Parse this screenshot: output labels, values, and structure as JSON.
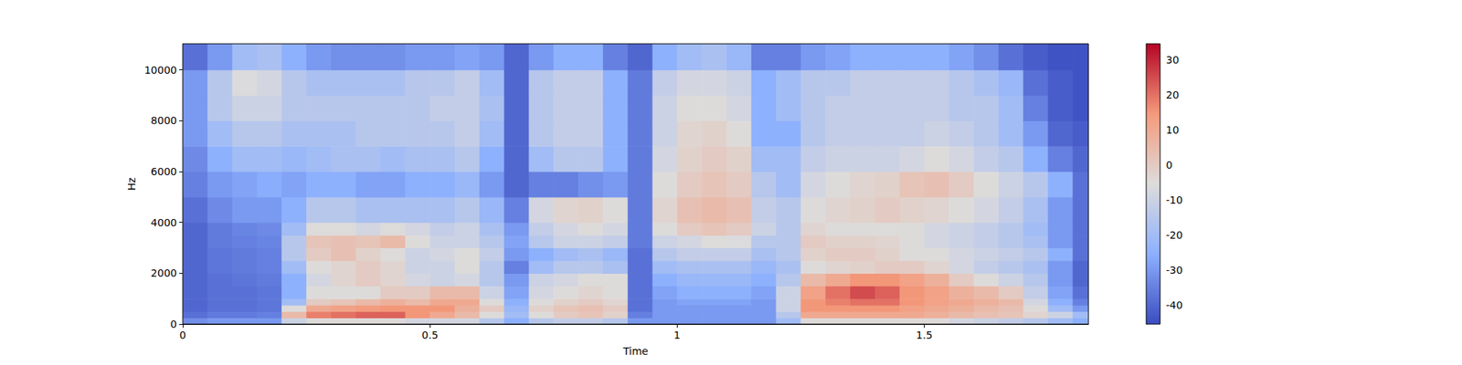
{
  "chart_data": {
    "type": "heatmap",
    "xlabel": "Time",
    "ylabel": "Hz",
    "xlim": [
      0,
      1.832
    ],
    "ylim": [
      0,
      11025
    ],
    "xticks": [
      0,
      0.5,
      1,
      1.5
    ],
    "yticks": [
      0,
      2000,
      4000,
      6000,
      8000,
      10000
    ],
    "colorbar": {
      "range": [
        -45.3,
        34.5
      ],
      "ticks": [
        -40,
        -30,
        -20,
        -10,
        0,
        10,
        20,
        30
      ]
    },
    "x_bins": [
      0,
      0.05,
      0.1,
      0.15,
      0.2,
      0.25,
      0.3,
      0.35,
      0.4,
      0.45,
      0.5,
      0.55,
      0.6,
      0.65,
      0.7,
      0.75,
      0.8,
      0.85,
      0.9,
      0.95,
      1.0,
      1.05,
      1.1,
      1.15,
      1.2,
      1.25,
      1.3,
      1.35,
      1.4,
      1.45,
      1.5,
      1.55,
      1.6,
      1.65,
      1.7,
      1.75,
      1.8,
      1.832
    ],
    "y_bins": [
      0,
      250,
      500,
      750,
      1000,
      1500,
      2000,
      2500,
      3000,
      3500,
      4000,
      5000,
      6000,
      7000,
      8000,
      9000,
      10000,
      11025
    ],
    "cells": [
      [
        -32,
        -38,
        -40,
        -40,
        -40,
        -40,
        -40,
        -40,
        -40,
        -40,
        -38,
        -35,
        -33,
        -30,
        -30,
        -30,
        -38
      ],
      [
        -30,
        -36,
        -38,
        -38,
        -38,
        -38,
        -37,
        -37,
        -36,
        -36,
        -33,
        -30,
        -25,
        -20,
        -15,
        -15,
        -30
      ],
      [
        -30,
        -36,
        -38,
        -38,
        -38,
        -37,
        -36,
        -36,
        -35,
        -34,
        -30,
        -28,
        -20,
        -15,
        -10,
        -6,
        -20
      ],
      [
        -30,
        -35,
        -37,
        -37,
        -37,
        -36,
        -35,
        -35,
        -34,
        -33,
        -30,
        -26,
        -20,
        -15,
        -10,
        -8,
        -18
      ],
      [
        -10,
        5,
        -5,
        -20,
        -25,
        -25,
        -20,
        -15,
        -15,
        -20,
        -25,
        -28,
        -22,
        -18,
        -15,
        -15,
        -25
      ],
      [
        -5,
        18,
        10,
        0,
        -5,
        -8,
        -5,
        0,
        2,
        -5,
        -15,
        -25,
        -20,
        -18,
        -15,
        -18,
        -30
      ],
      [
        -5,
        20,
        12,
        2,
        -5,
        -3,
        -3,
        3,
        3,
        -5,
        -15,
        -25,
        -18,
        -18,
        -15,
        -18,
        -32
      ],
      [
        -5,
        22,
        14,
        5,
        -5,
        0,
        0,
        -2,
        2,
        -8,
        -18,
        -28,
        -18,
        -15,
        -15,
        -18,
        -32
      ],
      [
        -5,
        22,
        15,
        8,
        0,
        -3,
        -3,
        -5,
        5,
        -5,
        -18,
        -28,
        -20,
        -15,
        -15,
        -18,
        -32
      ],
      [
        -8,
        15,
        15,
        5,
        0,
        -8,
        -10,
        -10,
        -5,
        -8,
        -18,
        -25,
        -18,
        -15,
        -15,
        -15,
        -30
      ],
      [
        -8,
        10,
        15,
        10,
        5,
        -10,
        -10,
        -8,
        -10,
        -12,
        -18,
        -25,
        -18,
        -15,
        -12,
        -15,
        -30
      ],
      [
        -8,
        5,
        8,
        10,
        5,
        -8,
        -5,
        -5,
        -10,
        -10,
        -15,
        -22,
        -15,
        -12,
        -12,
        -12,
        -28
      ],
      [
        -15,
        -5,
        0,
        -5,
        -10,
        -15,
        -15,
        -12,
        -15,
        -18,
        -22,
        -30,
        -25,
        -20,
        -18,
        -20,
        -30
      ],
      [
        -25,
        -20,
        -22,
        -25,
        -28,
        -30,
        -35,
        -30,
        -28,
        -30,
        -35,
        -40,
        -40,
        -40,
        -40,
        -40,
        -40
      ],
      [
        -15,
        -5,
        -2,
        -5,
        -8,
        -10,
        -20,
        -25,
        -15,
        -12,
        -8,
        -35,
        -20,
        -15,
        -15,
        -15,
        -30
      ],
      [
        -12,
        0,
        2,
        -2,
        -5,
        -8,
        -15,
        -20,
        -10,
        -8,
        -3,
        -35,
        -15,
        -12,
        -12,
        -12,
        -25
      ],
      [
        -12,
        2,
        3,
        0,
        -3,
        -5,
        -15,
        -18,
        -10,
        -5,
        -2,
        -32,
        -15,
        -12,
        -12,
        -12,
        -25
      ],
      [
        -15,
        -2,
        0,
        -3,
        -5,
        -5,
        -18,
        -22,
        -12,
        -8,
        -5,
        -30,
        -25,
        -25,
        -25,
        -25,
        -35
      ],
      [
        -30,
        -35,
        -38,
        -38,
        -38,
        -38,
        -38,
        -38,
        -36,
        -36,
        -36,
        -36,
        -36,
        -36,
        -36,
        -36,
        -40
      ],
      [
        -30,
        -30,
        -30,
        -30,
        -28,
        -25,
        -20,
        -15,
        -10,
        -5,
        -3,
        -5,
        -8,
        -10,
        -10,
        -12,
        -25
      ],
      [
        -30,
        -30,
        -30,
        -28,
        -25,
        -22,
        -18,
        -12,
        -8,
        0,
        3,
        0,
        -2,
        -3,
        -5,
        -8,
        -20
      ],
      [
        -30,
        -30,
        -30,
        -28,
        -25,
        -22,
        -18,
        -12,
        -5,
        2,
        5,
        2,
        0,
        -2,
        -5,
        -8,
        -18
      ],
      [
        -30,
        -30,
        -30,
        -28,
        -25,
        -22,
        -18,
        -12,
        -6,
        0,
        3,
        0,
        -2,
        -5,
        -8,
        -10,
        -22
      ],
      [
        -30,
        -30,
        -30,
        -30,
        -28,
        -25,
        -22,
        -18,
        -15,
        -10,
        -12,
        -15,
        -20,
        -25,
        -25,
        -25,
        -35
      ],
      [
        -20,
        -15,
        -10,
        -10,
        -10,
        -15,
        -18,
        -15,
        -15,
        -15,
        -15,
        -20,
        -20,
        -25,
        -20,
        -20,
        -35
      ],
      [
        -5,
        10,
        15,
        15,
        12,
        5,
        -5,
        -2,
        0,
        -3,
        -5,
        -8,
        -12,
        -15,
        -15,
        -15,
        -30
      ],
      [
        -5,
        10,
        15,
        18,
        20,
        10,
        -3,
        0,
        -2,
        -5,
        -3,
        -5,
        -10,
        -12,
        -12,
        -15,
        -28
      ],
      [
        -5,
        10,
        15,
        20,
        25,
        15,
        -2,
        0,
        -2,
        -5,
        -2,
        -3,
        -10,
        -12,
        -12,
        -12,
        -25
      ],
      [
        -5,
        10,
        15,
        20,
        22,
        15,
        0,
        -2,
        -3,
        -5,
        0,
        -2,
        -10,
        -12,
        -12,
        -12,
        -25
      ],
      [
        -5,
        10,
        12,
        15,
        15,
        12,
        0,
        -5,
        -5,
        -5,
        -2,
        2,
        -8,
        -12,
        -12,
        -12,
        -25
      ],
      [
        -5,
        8,
        10,
        12,
        12,
        8,
        -3,
        -5,
        -8,
        -8,
        -3,
        3,
        -5,
        -10,
        -12,
        -12,
        -25
      ],
      [
        -8,
        5,
        8,
        10,
        8,
        0,
        -8,
        -8,
        -10,
        -10,
        -5,
        0,
        -8,
        -12,
        -15,
        -15,
        -28
      ],
      [
        -10,
        3,
        5,
        8,
        5,
        -5,
        -12,
        -10,
        -12,
        -12,
        -8,
        -5,
        -12,
        -15,
        -15,
        -18,
        -32
      ],
      [
        -12,
        2,
        3,
        5,
        0,
        -10,
        -15,
        -12,
        -15,
        -15,
        -12,
        -10,
        -15,
        -20,
        -20,
        -22,
        -38
      ],
      [
        -15,
        -3,
        -5,
        -8,
        -12,
        -15,
        -18,
        -15,
        -18,
        -20,
        -18,
        -15,
        -25,
        -30,
        -35,
        -38,
        -42
      ],
      [
        -20,
        -10,
        -20,
        -25,
        -28,
        -30,
        -30,
        -25,
        -30,
        -30,
        -30,
        -25,
        -35,
        -40,
        -42,
        -42,
        -44
      ],
      [
        -25,
        -20,
        -30,
        -35,
        -38,
        -40,
        -40,
        -38,
        -38,
        -38,
        -38,
        -38,
        -40,
        -42,
        -44,
        -44,
        -44
      ]
    ]
  }
}
